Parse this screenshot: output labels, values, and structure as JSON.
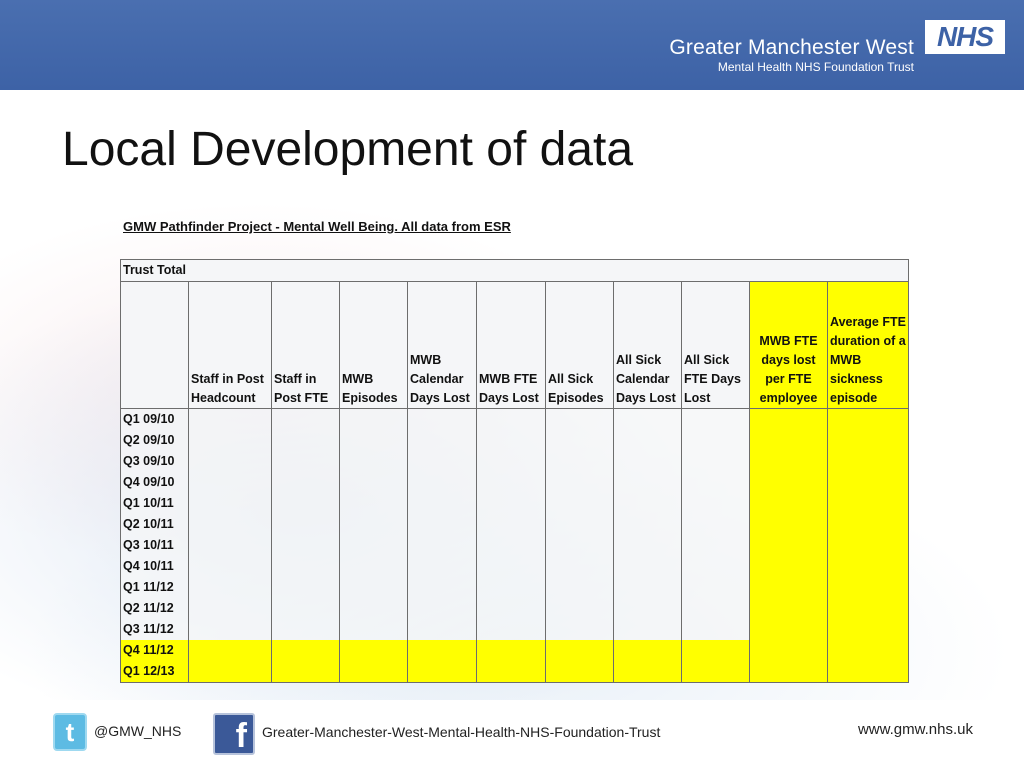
{
  "header": {
    "org_name": "Greater Manchester West",
    "org_sub": "Mental Health NHS Foundation Trust",
    "logo_text": "NHS"
  },
  "title": "Local Development of data",
  "table": {
    "caption": "GMW Pathfinder Project - Mental Well Being. All data from ESR",
    "group_label": "Trust Total",
    "columns": [
      "",
      "Staff in Post Headcount",
      "Staff in Post FTE",
      "MWB Episodes",
      "MWB Calendar Days Lost",
      "MWB FTE Days Lost",
      "All Sick Episodes",
      "All Sick Calendar Days Lost",
      "All Sick FTE Days Lost",
      "MWB FTE days lost per FTE employee",
      "Average FTE duration of a MWB sickness episode"
    ],
    "rows": [
      "Q1 09/10",
      "Q2 09/10",
      "Q3 09/10",
      "Q4 09/10",
      "Q1 10/11",
      "Q2 10/11",
      "Q3 10/11",
      "Q4 10/11",
      "Q1 11/12",
      "Q2 11/12",
      "Q3 11/12",
      "Q4 11/12",
      "Q1 12/13"
    ],
    "highlight_color": "#ffff00"
  },
  "footer": {
    "twitter_handle": "@GMW_NHS",
    "twitter_icon": "twitter-icon",
    "facebook_page": "Greater-Manchester-West-Mental-Health-NHS-Foundation-Trust",
    "facebook_icon": "facebook-icon",
    "website": "www.gmw.nhs.uk"
  },
  "colors": {
    "header_bg": "#3d62a6",
    "highlight": "#ffff00"
  }
}
